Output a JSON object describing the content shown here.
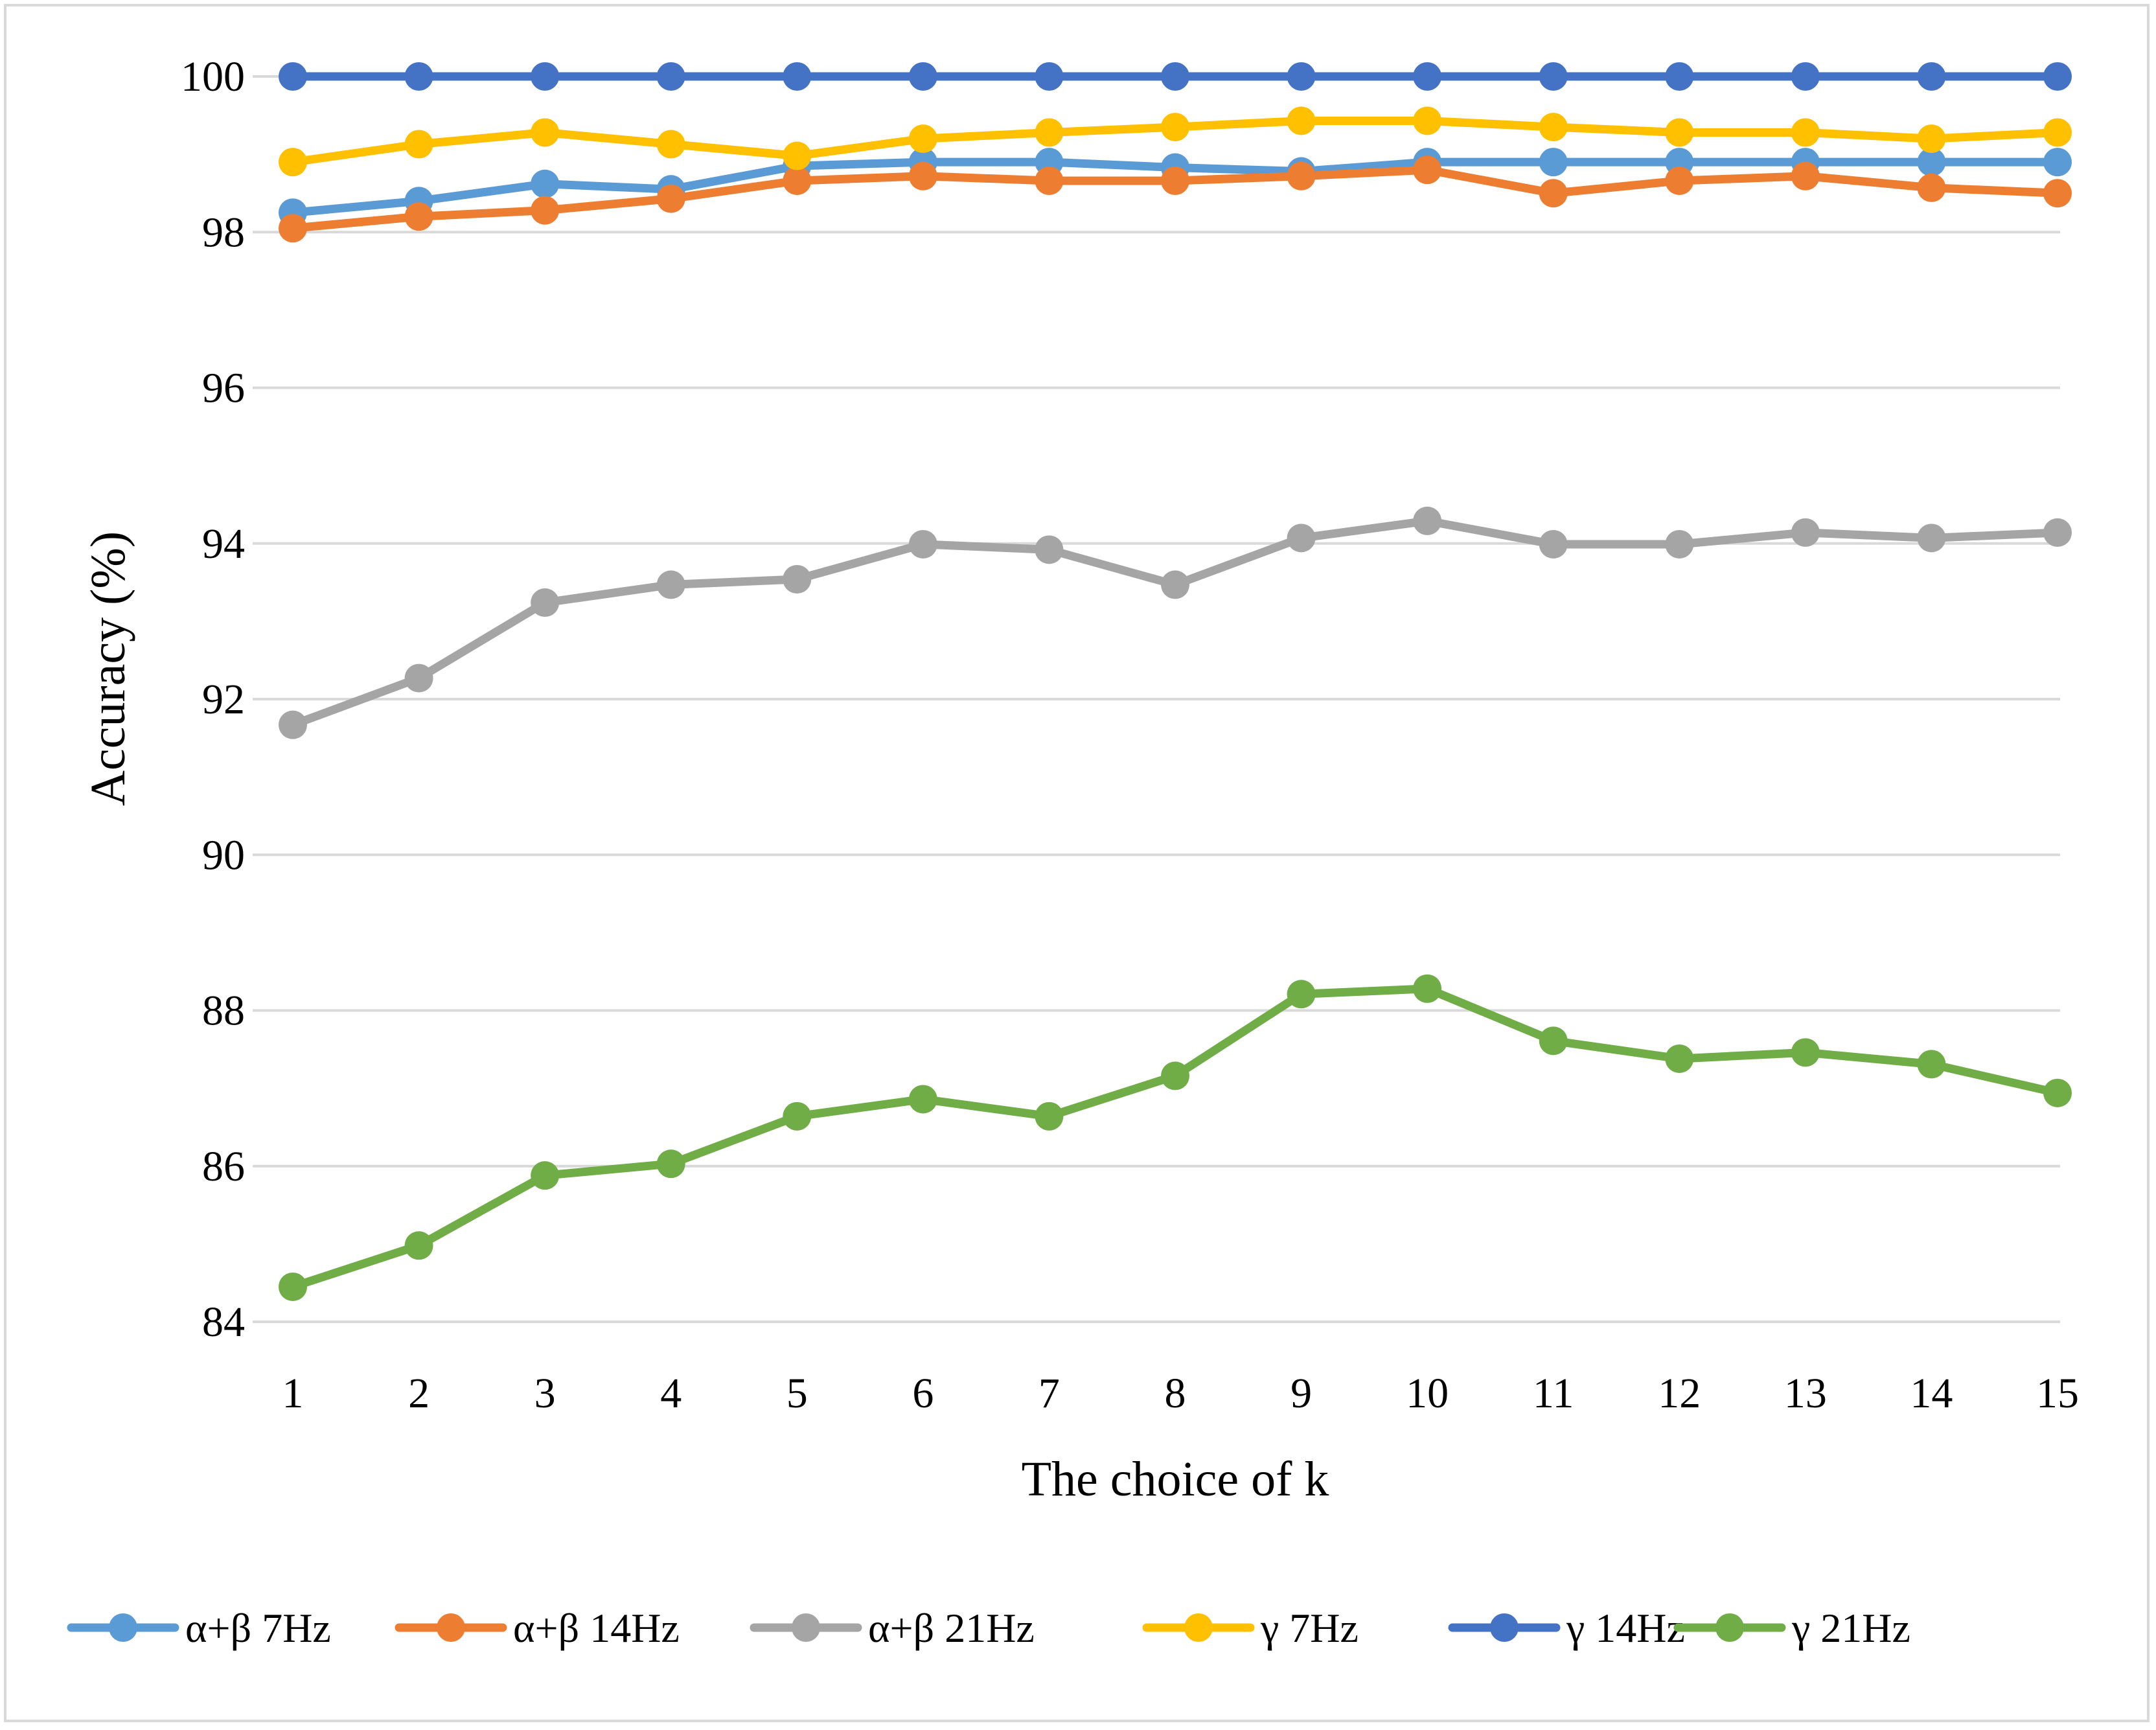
{
  "chart_data": {
    "type": "line",
    "title": "",
    "xlabel": "The choice of k",
    "ylabel": "Accuracy (%)",
    "ylim": [
      84,
      100
    ],
    "yticks": [
      84,
      86,
      88,
      90,
      92,
      94,
      96,
      98,
      100
    ],
    "grid": "horizontal",
    "legend_position": "bottom",
    "categories": [
      "1",
      "2",
      "3",
      "4",
      "5",
      "6",
      "7",
      "8",
      "9",
      "10",
      "11",
      "12",
      "13",
      "14",
      "15"
    ],
    "series": [
      {
        "name": "α+β 7Hz",
        "color": "#5b9bd5",
        "values": [
          98.25,
          98.4,
          98.62,
          98.55,
          98.85,
          98.9,
          98.9,
          98.83,
          98.78,
          98.9,
          98.9,
          98.9,
          98.9,
          98.9,
          98.9
        ]
      },
      {
        "name": "α+β 14Hz",
        "color": "#ed7d31",
        "values": [
          98.05,
          98.2,
          98.28,
          98.43,
          98.66,
          98.72,
          98.66,
          98.66,
          98.72,
          98.8,
          98.5,
          98.66,
          98.72,
          98.57,
          98.5
        ]
      },
      {
        "name": "α+β 21Hz",
        "color": "#a5a5a5",
        "values": [
          91.67,
          92.27,
          93.24,
          93.47,
          93.54,
          93.99,
          93.92,
          93.47,
          94.07,
          94.29,
          93.99,
          93.99,
          94.14,
          94.07,
          94.14
        ]
      },
      {
        "name": "γ 7Hz",
        "color": "#ffc000",
        "values": [
          98.9,
          99.13,
          99.28,
          99.13,
          98.98,
          99.2,
          99.28,
          99.35,
          99.43,
          99.43,
          99.35,
          99.28,
          99.28,
          99.2,
          99.28
        ]
      },
      {
        "name": "γ 14Hz",
        "color": "#4472c4",
        "values": [
          100,
          100,
          100,
          100,
          100,
          100,
          100,
          100,
          100,
          100,
          100,
          100,
          100,
          100,
          100
        ]
      },
      {
        "name": "γ 21Hz",
        "color": "#70ad47",
        "values": [
          84.45,
          84.98,
          85.88,
          86.03,
          86.64,
          86.86,
          86.64,
          87.16,
          88.21,
          88.28,
          87.61,
          87.38,
          87.46,
          87.31,
          86.94
        ]
      }
    ]
  }
}
